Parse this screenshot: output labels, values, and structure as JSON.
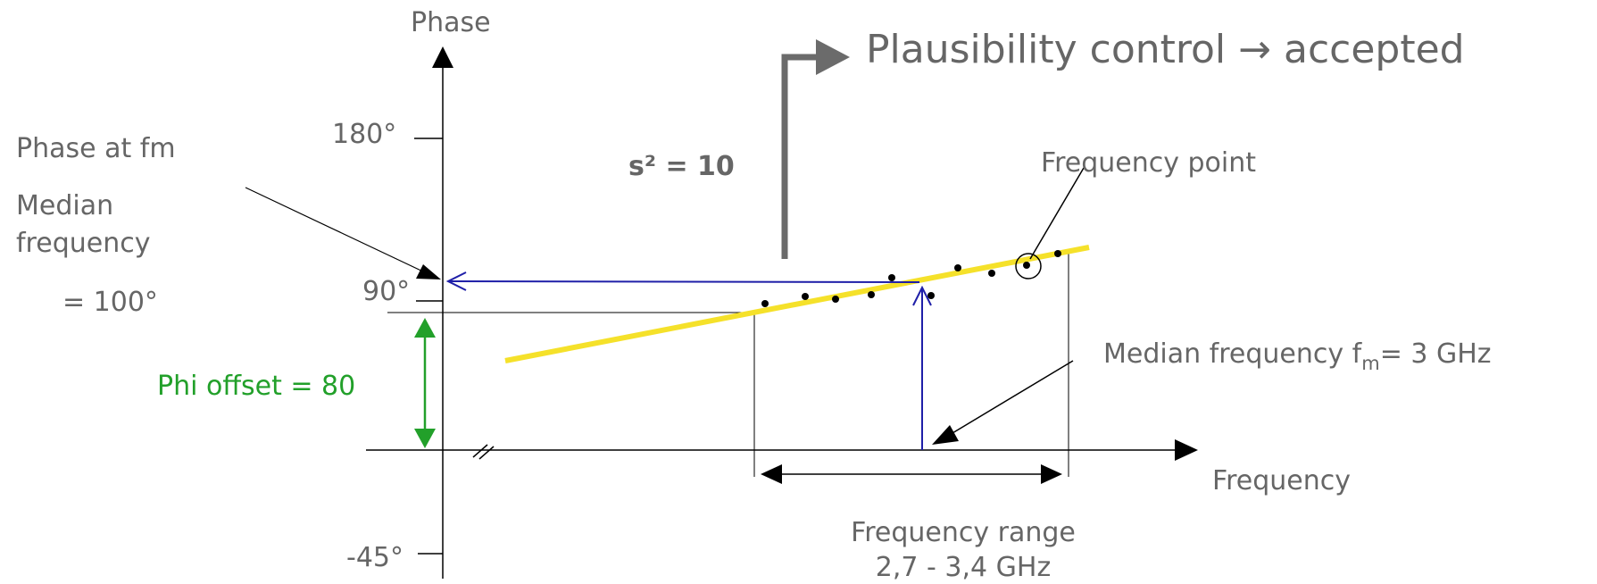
{
  "labels": {
    "y_axis": "Phase",
    "x_axis": "Frequency",
    "tick_180": "180°",
    "tick_90": "90°",
    "tick_neg45": "-45°",
    "plausibility": "Plausibility control → accepted",
    "s_squared": "s² = 10",
    "frequency_point": "Frequency point",
    "phase_at_fm": "Phase at fm",
    "median_line1": "Median",
    "median_line2": "frequency",
    "median_value": "= 100°",
    "phi_offset": "Phi offset = 80",
    "median_freq_prefix": "Median frequency f",
    "median_freq_sub": "m",
    "median_freq_suffix": "= 3 GHz",
    "freq_range_line1": "Frequency range",
    "freq_range_line2": "2,7 - 3,4 GHz"
  },
  "colors": {
    "text": "#666666",
    "fit_line": "#f5e12a",
    "median_arrow": "#1f1fa8",
    "phi_offset": "#22a02a",
    "plausibility_arrow": "#6b6b6b"
  }
}
